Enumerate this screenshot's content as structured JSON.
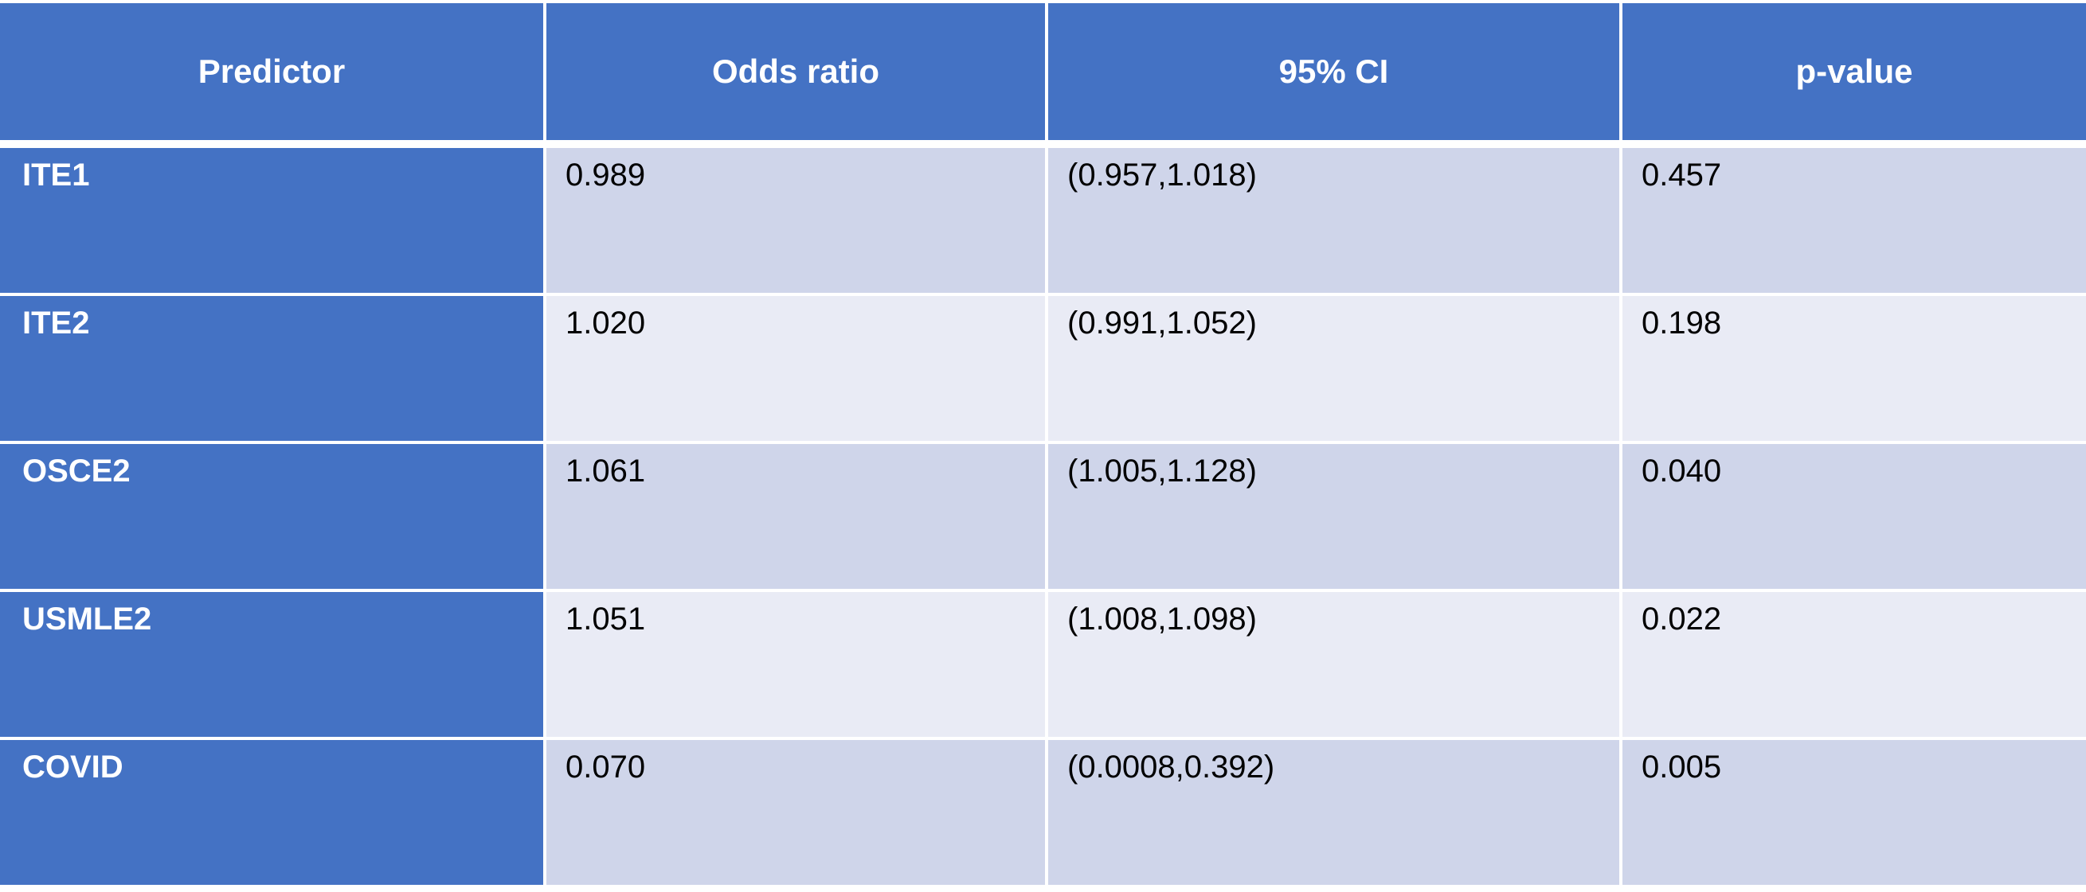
{
  "table": {
    "columns": [
      "Predictor",
      "Odds ratio",
      "95% CI",
      "p-value"
    ],
    "rows": [
      {
        "predictor": "ITE1",
        "odds_ratio": "0.989",
        "ci": "(0.957,1.018)",
        "p_value": "0.457"
      },
      {
        "predictor": "ITE2",
        "odds_ratio": "1.020",
        "ci": "(0.991,1.052)",
        "p_value": "0.198"
      },
      {
        "predictor": "OSCE2",
        "odds_ratio": "1.061",
        "ci": "(1.005,1.128)",
        "p_value": "0.040"
      },
      {
        "predictor": "USMLE2",
        "odds_ratio": "1.051",
        "ci": "(1.008,1.098)",
        "p_value": "0.022"
      },
      {
        "predictor": "COVID",
        "odds_ratio": "0.070",
        "ci": "(0.0008,0.392)",
        "p_value": "0.005"
      }
    ]
  },
  "colors": {
    "header_bg": "#4472c4",
    "row_odd_bg": "#cfd5ea",
    "row_even_bg": "#e9ebf5",
    "header_text": "#ffffff"
  }
}
